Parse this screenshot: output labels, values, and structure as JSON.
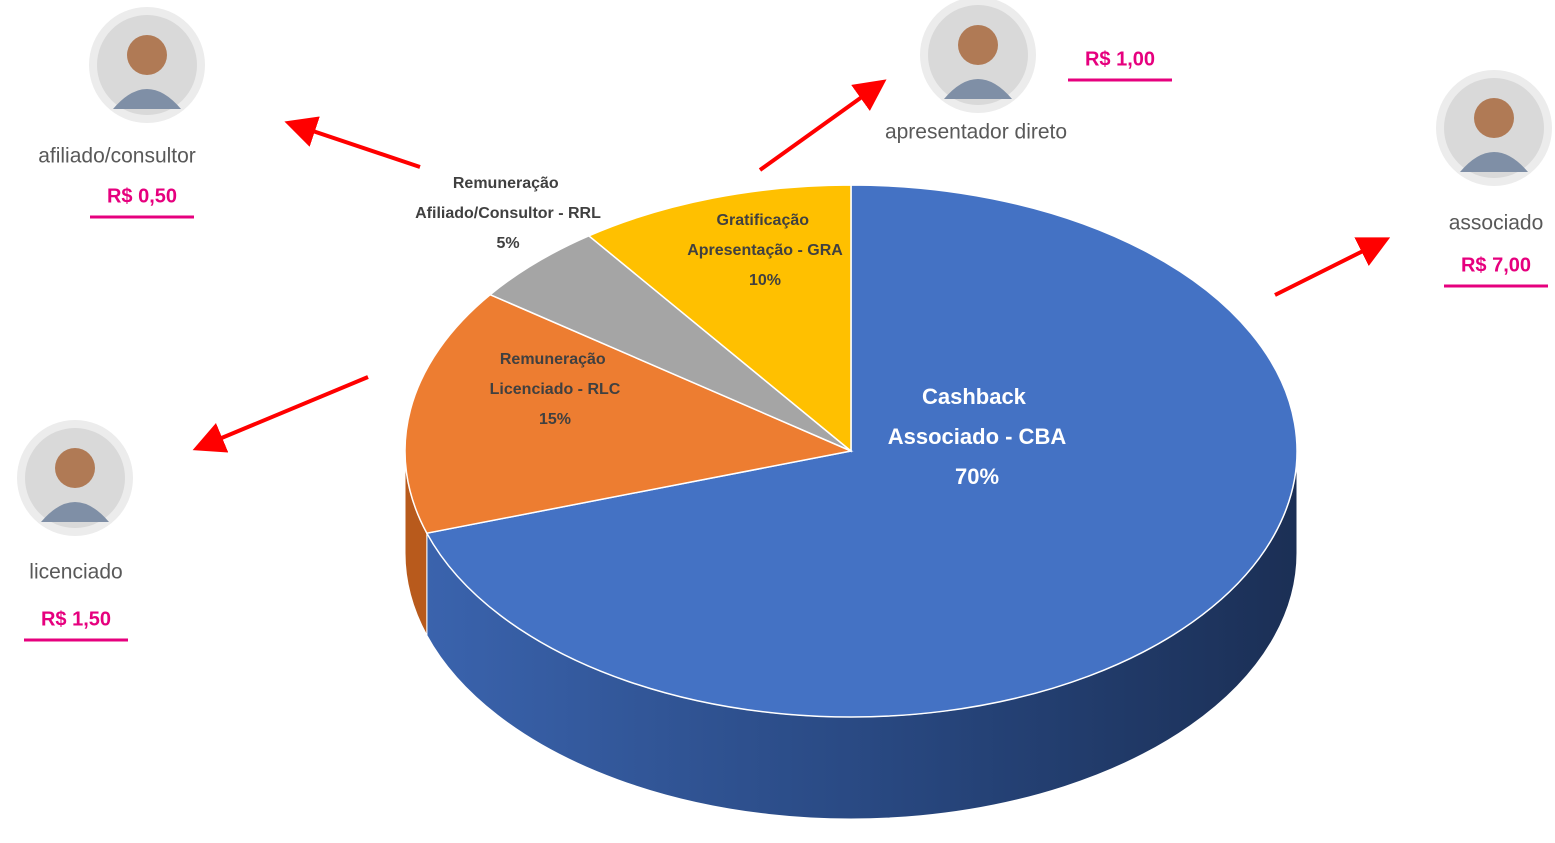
{
  "chart_data": {
    "type": "pie",
    "categories": [
      "Cashback Associado - CBA",
      "Remuneração Licenciado - RLC",
      "Remuneração Afiliado/Consultor - RRL",
      "Gratificação Apresentação - GRA"
    ],
    "values": [
      70,
      15,
      5,
      10
    ],
    "value_labels": [
      "70%",
      "15%",
      "5%",
      "10%"
    ],
    "colors": [
      "#4472c4",
      "#ed7d31",
      "#a5a5a5",
      "#ffc000"
    ]
  },
  "annotations": [
    {
      "label": "afiliado/consultor",
      "amount": "R$ 0,50"
    },
    {
      "label": "apresentador direto",
      "amount": "R$ 1,00"
    },
    {
      "label": "associado",
      "amount": "R$ 7,00"
    },
    {
      "label": "licenciado",
      "amount": "R$ 1,50"
    }
  ]
}
